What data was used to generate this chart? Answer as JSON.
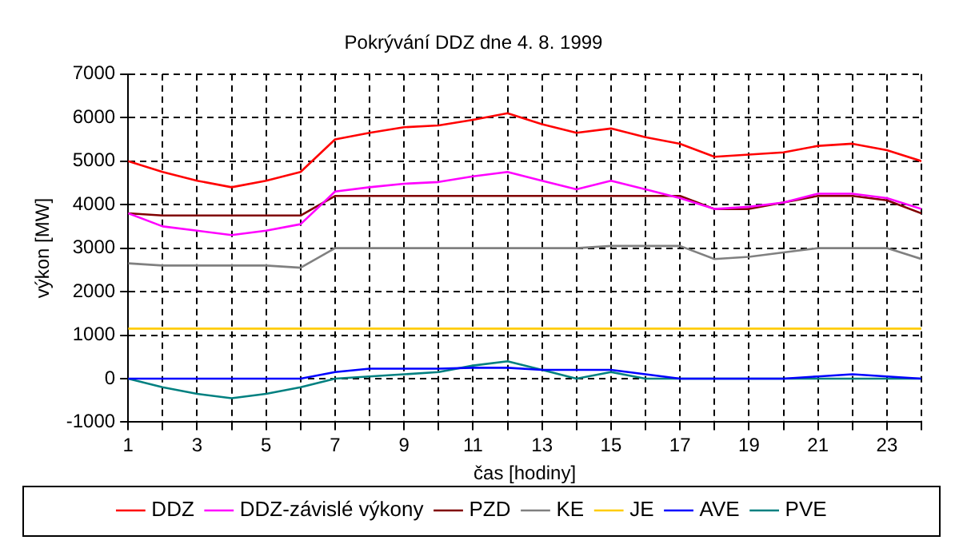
{
  "chart_data": {
    "type": "line",
    "title": "Pokrývání DDZ dne 4. 8. 1999",
    "xlabel": "čas [hodiny]",
    "ylabel": "výkon [MW]",
    "x": [
      1,
      2,
      3,
      4,
      5,
      6,
      7,
      8,
      9,
      10,
      11,
      12,
      13,
      14,
      15,
      16,
      17,
      18,
      19,
      20,
      21,
      22,
      23,
      24
    ],
    "series": [
      {
        "name": "DDZ",
        "color": "#ff0000",
        "values": [
          5000,
          4750,
          4550,
          4400,
          4550,
          4750,
          5500,
          5650,
          5780,
          5820,
          5950,
          6100,
          5850,
          5650,
          5750,
          5550,
          5400,
          5100,
          5150,
          5200,
          5350,
          5400,
          5250,
          5000
        ]
      },
      {
        "name": "DDZ-závislé výkony",
        "color": "#ff00ff",
        "values": [
          3800,
          3500,
          3400,
          3300,
          3400,
          3550,
          4300,
          4400,
          4480,
          4520,
          4650,
          4750,
          4550,
          4350,
          4550,
          4350,
          4150,
          3900,
          3950,
          4050,
          4250,
          4250,
          4150,
          3900
        ]
      },
      {
        "name": "PZD",
        "color": "#800000",
        "values": [
          3800,
          3750,
          3750,
          3750,
          3750,
          3750,
          4200,
          4200,
          4200,
          4200,
          4200,
          4200,
          4200,
          4200,
          4200,
          4200,
          4200,
          3900,
          3900,
          4050,
          4200,
          4200,
          4100,
          3800
        ]
      },
      {
        "name": "KE",
        "color": "#808080",
        "values": [
          2650,
          2600,
          2600,
          2600,
          2600,
          2550,
          3000,
          3000,
          3000,
          3000,
          3000,
          3000,
          3000,
          3000,
          3050,
          3050,
          3050,
          2750,
          2800,
          2900,
          3000,
          3000,
          3000,
          2750
        ]
      },
      {
        "name": "JE",
        "color": "#ffcc00",
        "values": [
          1150,
          1150,
          1150,
          1150,
          1150,
          1150,
          1150,
          1150,
          1150,
          1150,
          1150,
          1150,
          1150,
          1150,
          1150,
          1150,
          1150,
          1150,
          1150,
          1150,
          1150,
          1150,
          1150,
          1150
        ]
      },
      {
        "name": "AVE",
        "color": "#0000ff",
        "values": [
          0,
          0,
          0,
          0,
          0,
          0,
          150,
          230,
          230,
          230,
          250,
          250,
          200,
          200,
          200,
          100,
          0,
          0,
          0,
          0,
          50,
          100,
          50,
          0
        ]
      },
      {
        "name": "PVE",
        "color": "#008080",
        "values": [
          0,
          -200,
          -350,
          -450,
          -350,
          -200,
          0,
          50,
          100,
          150,
          300,
          400,
          200,
          0,
          150,
          0,
          0,
          0,
          0,
          0,
          0,
          0,
          0,
          0
        ]
      }
    ],
    "xlim": [
      1,
      24
    ],
    "xticks": [
      1,
      {
        "value": 2,
        "label": null
      },
      3,
      {
        "value": 4,
        "label": null
      },
      5,
      {
        "value": 6,
        "label": null
      },
      7,
      {
        "value": 8,
        "label": null
      },
      9,
      {
        "value": 10,
        "label": null
      },
      11,
      {
        "value": 12,
        "label": null
      },
      13,
      {
        "value": 14,
        "label": null
      },
      15,
      {
        "value": 16,
        "label": null
      },
      17,
      {
        "value": 18,
        "label": null
      },
      19,
      {
        "value": 20,
        "label": null
      },
      21,
      {
        "value": 22,
        "label": null
      },
      23,
      {
        "value": 24,
        "label": null
      }
    ],
    "ylim": [
      -1000,
      7000
    ],
    "yticks": [
      -1000,
      0,
      1000,
      2000,
      3000,
      4000,
      5000,
      6000,
      7000
    ],
    "grid": true,
    "legend": "bottom",
    "marker": "none",
    "line_style": "solid"
  }
}
